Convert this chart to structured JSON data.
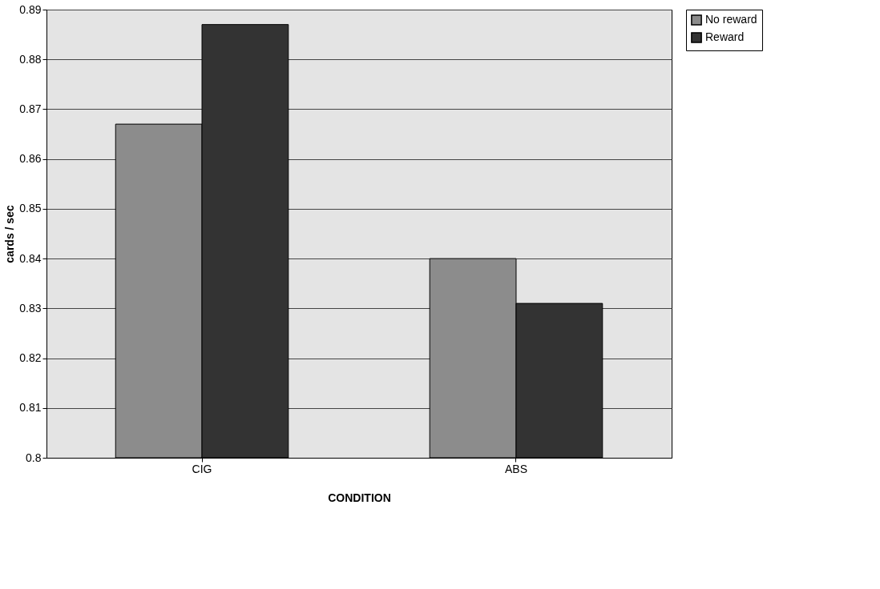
{
  "chart_data": {
    "type": "bar",
    "xlabel": "CONDITION",
    "ylabel": "cards / sec",
    "categories": [
      "CIG",
      "ABS"
    ],
    "series": [
      {
        "name": "No reward",
        "color": "#8c8c8c",
        "values": [
          0.867,
          0.84
        ]
      },
      {
        "name": "Reward",
        "color": "#333333",
        "values": [
          0.887,
          0.831
        ]
      }
    ],
    "ylim": [
      0.8,
      0.89
    ],
    "yticks": [
      0.8,
      0.81,
      0.82,
      0.83,
      0.84,
      0.85,
      0.86,
      0.87,
      0.88,
      0.89
    ],
    "grid": "y",
    "legend": "right"
  }
}
